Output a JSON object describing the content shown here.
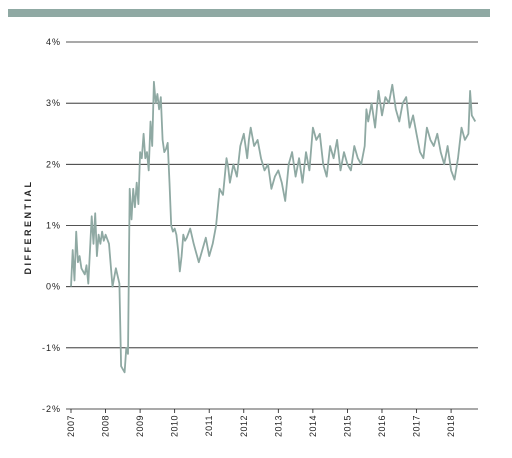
{
  "chart_data": {
    "type": "line",
    "title": "",
    "xlabel": "",
    "ylabel": "DIFFERENTIAL",
    "ylim": [
      -2,
      4
    ],
    "xlim": [
      2007,
      2018.75
    ],
    "y_ticks": [
      "4%",
      "3%",
      "2%",
      "1%",
      "0%",
      "-1%",
      "-2%"
    ],
    "y_tick_values": [
      4,
      3,
      2,
      1,
      0,
      -1,
      -2
    ],
    "x_ticks": [
      "2007",
      "2008",
      "2009",
      "2010",
      "2011",
      "2012",
      "2013",
      "2014",
      "2015",
      "2016",
      "2017",
      "2018"
    ],
    "x_tick_values": [
      2007,
      2008,
      2009,
      2010,
      2011,
      2012,
      2013,
      2014,
      2015,
      2016,
      2017,
      2018
    ],
    "grid": "horizontal",
    "line_color": "#8fa9a3",
    "accent_bar_color": "#8fa9a3",
    "series": [
      {
        "x": [
          2007.0,
          2007.05,
          2007.1,
          2007.15,
          2007.2,
          2007.25,
          2007.3,
          2007.4,
          2007.45,
          2007.5,
          2007.55,
          2007.6,
          2007.65,
          2007.7,
          2007.75,
          2007.8,
          2007.85,
          2007.9,
          2007.95,
          2008.0,
          2008.1,
          2008.2,
          2008.3,
          2008.4,
          2008.45,
          2008.5,
          2008.55,
          2008.6,
          2008.65,
          2008.7,
          2008.75,
          2008.8,
          2008.85,
          2008.9,
          2008.95,
          2009.0,
          2009.05,
          2009.1,
          2009.15,
          2009.2,
          2009.25,
          2009.3,
          2009.35,
          2009.4,
          2009.45,
          2009.5,
          2009.55,
          2009.6,
          2009.65,
          2009.7,
          2009.75,
          2009.8,
          2009.85,
          2009.9,
          2009.95,
          2010.0,
          2010.05,
          2010.1,
          2010.15,
          2010.2,
          2010.25,
          2010.3,
          2010.35,
          2010.45,
          2010.55,
          2010.6,
          2010.7,
          2010.8,
          2010.9,
          2011.0,
          2011.1,
          2011.2,
          2011.3,
          2011.4,
          2011.5,
          2011.55,
          2011.6,
          2011.7,
          2011.8,
          2011.9,
          2012.0,
          2012.1,
          2012.15,
          2012.2,
          2012.3,
          2012.4,
          2012.5,
          2012.6,
          2012.7,
          2012.8,
          2012.9,
          2013.0,
          2013.1,
          2013.2,
          2013.3,
          2013.4,
          2013.5,
          2013.6,
          2013.7,
          2013.8,
          2013.9,
          2014.0,
          2014.1,
          2014.2,
          2014.3,
          2014.4,
          2014.5,
          2014.6,
          2014.7,
          2014.8,
          2014.9,
          2015.0,
          2015.1,
          2015.2,
          2015.3,
          2015.4,
          2015.5,
          2015.55,
          2015.6,
          2015.7,
          2015.8,
          2015.9,
          2016.0,
          2016.1,
          2016.2,
          2016.3,
          2016.4,
          2016.5,
          2016.6,
          2016.7,
          2016.8,
          2016.9,
          2017.0,
          2017.1,
          2017.2,
          2017.3,
          2017.4,
          2017.5,
          2017.6,
          2017.7,
          2017.8,
          2017.9,
          2018.0,
          2018.1,
          2018.2,
          2018.3,
          2018.4,
          2018.5,
          2018.55,
          2018.6,
          2018.7
        ],
        "y": [
          0.0,
          0.6,
          0.1,
          0.9,
          0.4,
          0.5,
          0.3,
          0.2,
          0.35,
          0.05,
          0.6,
          1.15,
          0.7,
          1.2,
          0.5,
          0.85,
          0.7,
          0.9,
          0.75,
          0.85,
          0.7,
          0.0,
          0.3,
          0.05,
          -1.3,
          -1.35,
          -1.4,
          -1.0,
          -1.1,
          1.6,
          1.1,
          1.6,
          1.3,
          1.7,
          1.35,
          2.2,
          2.1,
          2.5,
          2.1,
          2.2,
          1.9,
          2.7,
          2.3,
          3.35,
          3.0,
          3.15,
          2.9,
          3.1,
          2.4,
          2.2,
          2.25,
          2.35,
          1.7,
          1.0,
          0.9,
          0.95,
          0.85,
          0.6,
          0.25,
          0.5,
          0.85,
          0.75,
          0.8,
          0.95,
          0.7,
          0.6,
          0.4,
          0.6,
          0.8,
          0.5,
          0.7,
          1.0,
          1.6,
          1.5,
          2.1,
          1.95,
          1.7,
          2.0,
          1.8,
          2.3,
          2.5,
          2.1,
          2.4,
          2.6,
          2.3,
          2.4,
          2.1,
          1.9,
          2.0,
          1.6,
          1.8,
          1.9,
          1.7,
          1.4,
          2.0,
          2.2,
          1.8,
          2.1,
          1.7,
          2.2,
          1.9,
          2.6,
          2.4,
          2.5,
          2.0,
          1.8,
          2.3,
          2.1,
          2.4,
          1.9,
          2.2,
          2.0,
          1.9,
          2.3,
          2.1,
          2.0,
          2.3,
          2.9,
          2.7,
          3.0,
          2.6,
          3.2,
          2.8,
          3.1,
          3.0,
          3.3,
          2.9,
          2.7,
          3.0,
          3.1,
          2.6,
          2.8,
          2.5,
          2.2,
          2.1,
          2.6,
          2.4,
          2.3,
          2.5,
          2.2,
          2.0,
          2.3,
          1.9,
          1.75,
          2.1,
          2.6,
          2.4,
          2.5,
          3.2,
          2.8,
          2.7
        ]
      }
    ]
  }
}
